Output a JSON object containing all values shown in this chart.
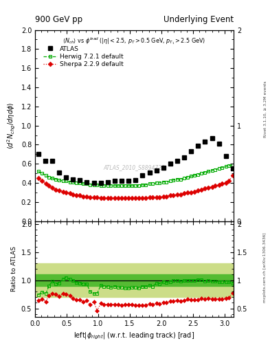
{
  "title_left": "900 GeV pp",
  "title_right": "Underlying Event",
  "watermark": "ATLAS_2010_S8894728",
  "xlabel": "left|\\u03d5right| (w.r.t. leading track) [rad]",
  "ylabel": "\\u27e8d\\u00b2N_{chg}/d\\u03b7d\\u03d5\\u27e9",
  "ylabel_ratio": "Ratio to ATLAS",
  "ylim_main": [
    0.0,
    2.0
  ],
  "ylim_ratio": [
    0.35,
    2.05
  ],
  "xlim": [
    0.0,
    3.14159
  ],
  "atlas_x": [
    0.05,
    0.16,
    0.27,
    0.38,
    0.49,
    0.6,
    0.71,
    0.82,
    0.93,
    1.04,
    1.15,
    1.26,
    1.37,
    1.48,
    1.59,
    1.7,
    1.81,
    1.92,
    2.03,
    2.14,
    2.25,
    2.36,
    2.47,
    2.58,
    2.69,
    2.8,
    2.91,
    3.02,
    3.13
  ],
  "atlas_y": [
    0.7,
    0.63,
    0.63,
    0.51,
    0.46,
    0.44,
    0.43,
    0.41,
    0.4,
    0.4,
    0.41,
    0.42,
    0.42,
    0.42,
    0.43,
    0.48,
    0.51,
    0.53,
    0.56,
    0.6,
    0.63,
    0.67,
    0.73,
    0.79,
    0.83,
    0.87,
    0.81,
    0.68,
    0.55
  ],
  "atlas_color": "#000000",
  "herwig_x": [
    0.05,
    0.11,
    0.17,
    0.22,
    0.27,
    0.33,
    0.38,
    0.44,
    0.49,
    0.55,
    0.6,
    0.65,
    0.71,
    0.76,
    0.82,
    0.87,
    0.93,
    0.98,
    1.04,
    1.09,
    1.15,
    1.2,
    1.26,
    1.31,
    1.37,
    1.42,
    1.48,
    1.53,
    1.59,
    1.64,
    1.7,
    1.75,
    1.81,
    1.86,
    1.92,
    1.97,
    2.03,
    2.08,
    2.14,
    2.19,
    2.25,
    2.3,
    2.36,
    2.41,
    2.47,
    2.52,
    2.58,
    2.63,
    2.69,
    2.74,
    2.8,
    2.85,
    2.91,
    2.96,
    3.02,
    3.07,
    3.13
  ],
  "herwig_y": [
    0.52,
    0.5,
    0.48,
    0.46,
    0.45,
    0.44,
    0.43,
    0.42,
    0.42,
    0.41,
    0.41,
    0.4,
    0.4,
    0.39,
    0.39,
    0.38,
    0.38,
    0.38,
    0.37,
    0.37,
    0.37,
    0.37,
    0.37,
    0.37,
    0.37,
    0.37,
    0.37,
    0.37,
    0.37,
    0.37,
    0.38,
    0.38,
    0.39,
    0.39,
    0.4,
    0.4,
    0.41,
    0.41,
    0.42,
    0.43,
    0.44,
    0.44,
    0.45,
    0.46,
    0.47,
    0.48,
    0.49,
    0.5,
    0.51,
    0.52,
    0.53,
    0.54,
    0.55,
    0.56,
    0.57,
    0.58,
    0.59
  ],
  "herwig_color": "#00aa00",
  "sherpa_x": [
    0.05,
    0.11,
    0.17,
    0.22,
    0.27,
    0.33,
    0.38,
    0.44,
    0.49,
    0.55,
    0.6,
    0.65,
    0.71,
    0.76,
    0.82,
    0.87,
    0.93,
    0.98,
    1.04,
    1.09,
    1.15,
    1.2,
    1.26,
    1.31,
    1.37,
    1.42,
    1.48,
    1.53,
    1.59,
    1.64,
    1.7,
    1.75,
    1.81,
    1.86,
    1.92,
    1.97,
    2.03,
    2.08,
    2.14,
    2.19,
    2.25,
    2.3,
    2.36,
    2.41,
    2.47,
    2.52,
    2.58,
    2.63,
    2.69,
    2.74,
    2.8,
    2.85,
    2.91,
    2.96,
    3.02,
    3.07,
    3.13
  ],
  "sherpa_y": [
    0.45,
    0.42,
    0.39,
    0.37,
    0.35,
    0.33,
    0.32,
    0.31,
    0.3,
    0.29,
    0.28,
    0.27,
    0.27,
    0.26,
    0.26,
    0.25,
    0.25,
    0.25,
    0.24,
    0.24,
    0.24,
    0.24,
    0.24,
    0.24,
    0.24,
    0.24,
    0.24,
    0.24,
    0.24,
    0.24,
    0.24,
    0.24,
    0.25,
    0.25,
    0.25,
    0.25,
    0.26,
    0.26,
    0.27,
    0.27,
    0.28,
    0.28,
    0.29,
    0.3,
    0.3,
    0.31,
    0.32,
    0.33,
    0.34,
    0.35,
    0.36,
    0.37,
    0.38,
    0.39,
    0.4,
    0.42,
    0.48
  ],
  "sherpa_color": "#dd0000",
  "herwig_ratio_y": [
    0.74,
    0.79,
    0.76,
    0.9,
    0.98,
    0.94,
    0.95,
    1.02,
    1.05,
    1.02,
    1.0,
    0.96,
    0.95,
    0.94,
    0.93,
    0.8,
    0.76,
    0.76,
    0.91,
    0.89,
    0.88,
    0.87,
    0.89,
    0.87,
    0.87,
    0.86,
    0.86,
    0.87,
    0.87,
    0.86,
    0.89,
    0.88,
    0.91,
    0.89,
    0.95,
    0.94,
    0.97,
    0.96,
    0.97,
    1.0,
    1.0,
    0.98,
    0.99,
    1.0,
    1.0,
    1.0,
    1.01,
    1.01,
    0.98,
    1.0,
    0.98,
    0.98,
    0.97,
    0.97,
    0.97,
    0.97,
    0.95
  ],
  "sherpa_ratio_y": [
    0.64,
    0.67,
    0.62,
    0.73,
    0.76,
    0.75,
    0.71,
    0.76,
    0.75,
    0.73,
    0.68,
    0.65,
    0.65,
    0.62,
    0.64,
    0.57,
    0.62,
    0.46,
    0.59,
    0.57,
    0.57,
    0.57,
    0.57,
    0.57,
    0.56,
    0.57,
    0.57,
    0.57,
    0.56,
    0.56,
    0.56,
    0.56,
    0.58,
    0.57,
    0.59,
    0.58,
    0.61,
    0.6,
    0.63,
    0.63,
    0.64,
    0.63,
    0.64,
    0.66,
    0.65,
    0.65,
    0.65,
    0.68,
    0.66,
    0.68,
    0.67,
    0.67,
    0.67,
    0.67,
    0.68,
    0.69,
    0.77
  ],
  "band_inner_color": "#55bb33",
  "band_outer_color": "#ccdd88",
  "band_inner_low": 0.9,
  "band_inner_high": 1.1,
  "band_outer_low": 0.7,
  "band_outer_high": 1.3,
  "right_label_main": "Rivet 3.1.10, ≥ 3.2M events",
  "right_label_ratio": "mcplots.cern.ch [arXiv:1306.3436]"
}
